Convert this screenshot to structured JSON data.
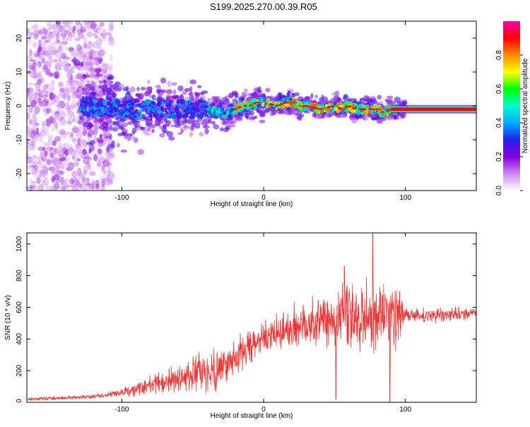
{
  "title": "S199.2025.270.00.39.R05",
  "colors": {
    "snr_line": "#ee3333",
    "axis": "#000000"
  },
  "chart_data": [
    {
      "type": "heatmap",
      "xlabel": "Height of straight line (km)",
      "ylabel": "Frequency (Hz)",
      "xlim": [
        -167,
        150
      ],
      "ylim": [
        -25,
        25
      ],
      "xticks": [
        -100,
        0,
        100
      ],
      "yticks": [
        -20,
        -10,
        0,
        10,
        20
      ],
      "xtick_labels": [
        "-100",
        "0",
        "100"
      ],
      "ytick_labels": [
        "-20",
        "-10",
        "0",
        "10",
        "20"
      ],
      "colorbar": {
        "label": "Normalized spectral amplitude",
        "range": [
          0,
          1
        ],
        "ticks": [
          0.0,
          0.2,
          0.4,
          0.6,
          0.8
        ],
        "tick_labels": [
          "0.0",
          "0.2",
          "0.4",
          "0.6",
          "0.8"
        ],
        "colormap": [
          "#ffffff",
          "#cc88ee",
          "#8800dd",
          "#2222ee",
          "#00aaff",
          "#00ffcc",
          "#00ff00",
          "#ffff00",
          "#ff8800",
          "#ff0000",
          "#ff00aa"
        ]
      },
      "ridge_center_hz": [
        [
          -167,
          0
        ],
        [
          -130,
          0
        ],
        [
          -100,
          -1
        ],
        [
          -70,
          -1
        ],
        [
          -40,
          -1
        ],
        [
          -30,
          -2
        ],
        [
          -25,
          -2
        ],
        [
          -20,
          -1
        ],
        [
          -15,
          0
        ],
        [
          -10,
          0
        ],
        [
          -5,
          1
        ],
        [
          0,
          1
        ],
        [
          10,
          0
        ],
        [
          15,
          1
        ],
        [
          20,
          1
        ],
        [
          25,
          0
        ],
        [
          30,
          0
        ],
        [
          40,
          -1
        ],
        [
          50,
          0
        ],
        [
          55,
          -1
        ],
        [
          60,
          0
        ],
        [
          65,
          -1
        ],
        [
          70,
          -1
        ],
        [
          75,
          -1
        ],
        [
          80,
          -1
        ],
        [
          85,
          -2
        ],
        [
          90,
          -1
        ],
        [
          100,
          -1
        ],
        [
          150,
          -1
        ]
      ]
    },
    {
      "type": "line",
      "xlabel": "Height of straight line (km)",
      "ylabel": "SNR (10 * v/v)",
      "xlim": [
        -167,
        150
      ],
      "ylim": [
        0,
        1070
      ],
      "xticks": [
        -100,
        0,
        100
      ],
      "yticks": [
        0,
        200,
        400,
        600,
        800,
        1000
      ],
      "xtick_labels": [
        "-100",
        "0",
        "100"
      ],
      "ytick_labels": [
        "0",
        "200",
        "400",
        "600",
        "800",
        "1000"
      ],
      "series": [
        {
          "name": "SNR",
          "baseline": [
            [
              -167,
              20
            ],
            [
              -150,
              25
            ],
            [
              -130,
              30
            ],
            [
              -110,
              45
            ],
            [
              -100,
              60
            ],
            [
              -90,
              80
            ],
            [
              -80,
              110
            ],
            [
              -70,
              130
            ],
            [
              -60,
              150
            ],
            [
              -50,
              170
            ],
            [
              -40,
              190
            ],
            [
              -30,
              220
            ],
            [
              -22,
              270
            ],
            [
              -15,
              320
            ],
            [
              -5,
              370
            ],
            [
              0,
              400
            ],
            [
              10,
              440
            ],
            [
              20,
              470
            ],
            [
              30,
              500
            ],
            [
              40,
              520
            ],
            [
              50,
              530
            ],
            [
              60,
              540
            ],
            [
              70,
              545
            ],
            [
              80,
              550
            ],
            [
              90,
              550
            ],
            [
              96,
              550
            ],
            [
              100,
              545
            ],
            [
              120,
              550
            ],
            [
              140,
              560
            ],
            [
              150,
              560
            ]
          ],
          "noise_amplitude": [
            [
              -167,
              10
            ],
            [
              -110,
              15
            ],
            [
              -100,
              30
            ],
            [
              -80,
              60
            ],
            [
              -60,
              90
            ],
            [
              -50,
              120
            ],
            [
              -35,
              140
            ],
            [
              -25,
              120
            ],
            [
              -20,
              130
            ],
            [
              -10,
              120
            ],
            [
              0,
              100
            ],
            [
              10,
              120
            ],
            [
              20,
              150
            ],
            [
              30,
              170
            ],
            [
              50,
              200
            ],
            [
              70,
              240
            ],
            [
              80,
              260
            ],
            [
              90,
              260
            ],
            [
              96,
              200
            ],
            [
              100,
              50
            ],
            [
              150,
              40
            ]
          ],
          "peaks": [
            [
              77,
              1065
            ],
            [
              51,
              20
            ],
            [
              89,
              0
            ],
            [
              57,
              860
            ]
          ]
        }
      ]
    }
  ]
}
